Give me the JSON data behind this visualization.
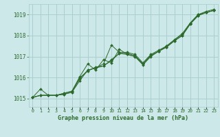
{
  "title": "Graphe pression niveau de la mer (hPa)",
  "bg_color": "#cce8e8",
  "grid_color": "#aacece",
  "line_color": "#2d6a2d",
  "x_labels": [
    "0",
    "1",
    "2",
    "3",
    "4",
    "5",
    "6",
    "7",
    "8",
    "9",
    "10",
    "11",
    "12",
    "13",
    "14",
    "15",
    "16",
    "17",
    "18",
    "19",
    "20",
    "21",
    "22",
    "23"
  ],
  "ylim": [
    1014.6,
    1019.5
  ],
  "yticks": [
    1015,
    1016,
    1017,
    1018,
    1019
  ],
  "series": [
    [
      1015.05,
      1015.45,
      1015.15,
      1015.15,
      1015.2,
      1015.3,
      1015.85,
      1016.35,
      1016.45,
      1016.65,
      1017.55,
      1017.2,
      1017.2,
      1017.1,
      1016.7,
      1017.1,
      1017.3,
      1017.5,
      1017.8,
      1018.1,
      1018.6,
      1019.0,
      1019.1,
      1019.2
    ],
    [
      1015.05,
      1015.15,
      1015.15,
      1015.15,
      1015.2,
      1015.3,
      1015.95,
      1016.35,
      1016.45,
      1016.55,
      1016.85,
      1017.15,
      1017.15,
      1017.05,
      1016.65,
      1017.05,
      1017.25,
      1017.45,
      1017.75,
      1018.0,
      1018.55,
      1018.95,
      1019.1,
      1019.2
    ],
    [
      1015.05,
      1015.15,
      1015.15,
      1015.15,
      1015.25,
      1015.35,
      1016.0,
      1016.3,
      1016.5,
      1016.55,
      1016.8,
      1017.15,
      1017.1,
      1017.0,
      1016.6,
      1017.0,
      1017.25,
      1017.45,
      1017.75,
      1018.0,
      1018.55,
      1018.95,
      1019.1,
      1019.2
    ],
    [
      1015.05,
      1015.15,
      1015.15,
      1015.15,
      1015.25,
      1015.35,
      1016.05,
      1016.65,
      1016.35,
      1016.85,
      1016.7,
      1017.35,
      1017.1,
      1017.0,
      1016.65,
      1017.05,
      1017.25,
      1017.5,
      1017.8,
      1018.05,
      1018.6,
      1019.0,
      1019.15,
      1019.25
    ]
  ]
}
